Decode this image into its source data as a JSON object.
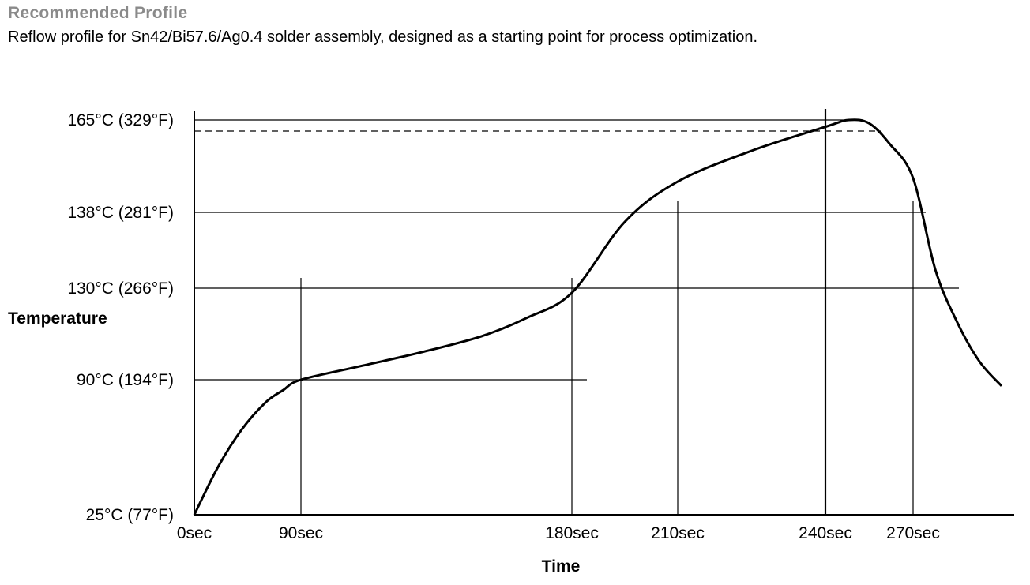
{
  "header": {
    "title": "Recommended Profile",
    "subtitle": "Reflow profile for Sn42/Bi57.6/Ag0.4 solder assembly, designed as a starting point for process optimization."
  },
  "colors": {
    "title": "#8a8a8a",
    "line": "#000000"
  },
  "chart_data": {
    "type": "line",
    "xlabel": "Time",
    "ylabel": "Temperature",
    "x_ticks": [
      "0sec",
      "90sec",
      "180sec",
      "210sec",
      "240sec",
      "270sec"
    ],
    "y_ticks": [
      "25°C (77°F)",
      "90°C (194°F)",
      "130°C (266°F)",
      "138°C (281°F)",
      "165°C (329°F)"
    ],
    "grid": false,
    "series": [
      {
        "points": [
          [
            0,
            25
          ],
          [
            20,
            48
          ],
          [
            40,
            66
          ],
          [
            60,
            79
          ],
          [
            75,
            85
          ],
          [
            90,
            90
          ],
          [
            110,
            96
          ],
          [
            130,
            102
          ],
          [
            150,
            109
          ],
          [
            165,
            117
          ],
          [
            180,
            128
          ],
          [
            195,
            137
          ],
          [
            210,
            147
          ],
          [
            225,
            156
          ],
          [
            240,
            163
          ],
          [
            248,
            165
          ],
          [
            255,
            164
          ],
          [
            262,
            158
          ],
          [
            270,
            148
          ],
          [
            280,
            132
          ],
          [
            290,
            115
          ],
          [
            300,
            98
          ],
          [
            310,
            87
          ]
        ]
      }
    ],
    "reference_lines": {
      "peak_temperature": 165,
      "dashed_temperature": 162
    }
  }
}
